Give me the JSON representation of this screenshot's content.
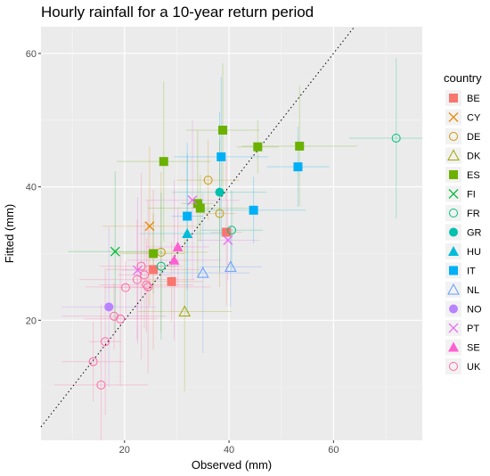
{
  "chart_data": {
    "type": "scatter",
    "title": "Hourly rainfall for a 10-year return period",
    "xlabel": "Observed (mm)",
    "ylabel": "Fitted (mm)",
    "xlim": [
      4,
      77
    ],
    "ylim": [
      2,
      64
    ],
    "x_ticks": [
      20,
      40,
      60
    ],
    "y_ticks": [
      20,
      40,
      60
    ],
    "grid": true,
    "reference_line": "y = x (dotted)",
    "legend": {
      "title": "country",
      "position": "right"
    },
    "series": [
      {
        "name": "BE",
        "color": "#F8766D",
        "shape": "square",
        "points": [
          [
            25.5,
            27.6
          ],
          [
            29,
            25.8
          ],
          [
            39.5,
            33.2
          ]
        ]
      },
      {
        "name": "CY",
        "color": "#E58700",
        "shape": "x",
        "points": [
          [
            24.8,
            34.1
          ]
        ]
      },
      {
        "name": "DE",
        "color": "#C99800",
        "shape": "circle-open",
        "points": [
          [
            27,
            30.2
          ],
          [
            36,
            41
          ],
          [
            38.2,
            36
          ]
        ]
      },
      {
        "name": "DK",
        "color": "#A3A500",
        "shape": "triangle-open",
        "points": [
          [
            31.5,
            21.3
          ]
        ]
      },
      {
        "name": "ES",
        "color": "#6BB100",
        "shape": "square",
        "points": [
          [
            27.5,
            43.8
          ],
          [
            25.5,
            30
          ],
          [
            34,
            37.5
          ],
          [
            34.5,
            36.8
          ],
          [
            38.8,
            48.5
          ],
          [
            45.5,
            46
          ],
          [
            53.5,
            46.1
          ]
        ]
      },
      {
        "name": "FI",
        "color": "#00BA38",
        "shape": "x",
        "points": [
          [
            18.2,
            30.3
          ]
        ]
      },
      {
        "name": "FR",
        "color": "#00BF7D",
        "shape": "circle-open",
        "points": [
          [
            72,
            47.3
          ],
          [
            40.5,
            33.5
          ],
          [
            27,
            28.1
          ]
        ]
      },
      {
        "name": "GR",
        "color": "#00C0AF",
        "shape": "circle",
        "points": [
          [
            38.2,
            39.2
          ]
        ]
      },
      {
        "name": "HU",
        "color": "#00BCD8",
        "shape": "triangle",
        "points": [
          [
            32,
            33
          ]
        ]
      },
      {
        "name": "IT",
        "color": "#00B0F6",
        "shape": "square",
        "points": [
          [
            38.5,
            44.5
          ],
          [
            53.2,
            43
          ],
          [
            32,
            35.6
          ],
          [
            44.7,
            36.5
          ]
        ]
      },
      {
        "name": "NL",
        "color": "#619CFF",
        "shape": "triangle-open",
        "points": [
          [
            35,
            27.1
          ],
          [
            40.3,
            28
          ]
        ]
      },
      {
        "name": "NO",
        "color": "#B983FF",
        "shape": "circle",
        "points": [
          [
            17,
            22
          ]
        ]
      },
      {
        "name": "PT",
        "color": "#E76BF3",
        "shape": "x",
        "points": [
          [
            33,
            38
          ],
          [
            39.8,
            32
          ],
          [
            22.5,
            27.5
          ]
        ]
      },
      {
        "name": "SE",
        "color": "#FD61D1",
        "shape": "triangle",
        "points": [
          [
            29.5,
            29
          ],
          [
            30.2,
            31
          ]
        ]
      },
      {
        "name": "UK",
        "color": "#FF67A4",
        "shape": "circle-open",
        "points": [
          [
            15.5,
            10.3
          ],
          [
            14,
            13.8
          ],
          [
            16.3,
            16.8
          ],
          [
            18,
            20.6
          ],
          [
            19.2,
            20.2
          ],
          [
            20.2,
            24.9
          ],
          [
            22.4,
            26.1
          ],
          [
            23.2,
            28.1
          ],
          [
            23.8,
            26.8
          ],
          [
            24.5,
            25
          ],
          [
            24.2,
            25.3
          ]
        ]
      }
    ]
  }
}
